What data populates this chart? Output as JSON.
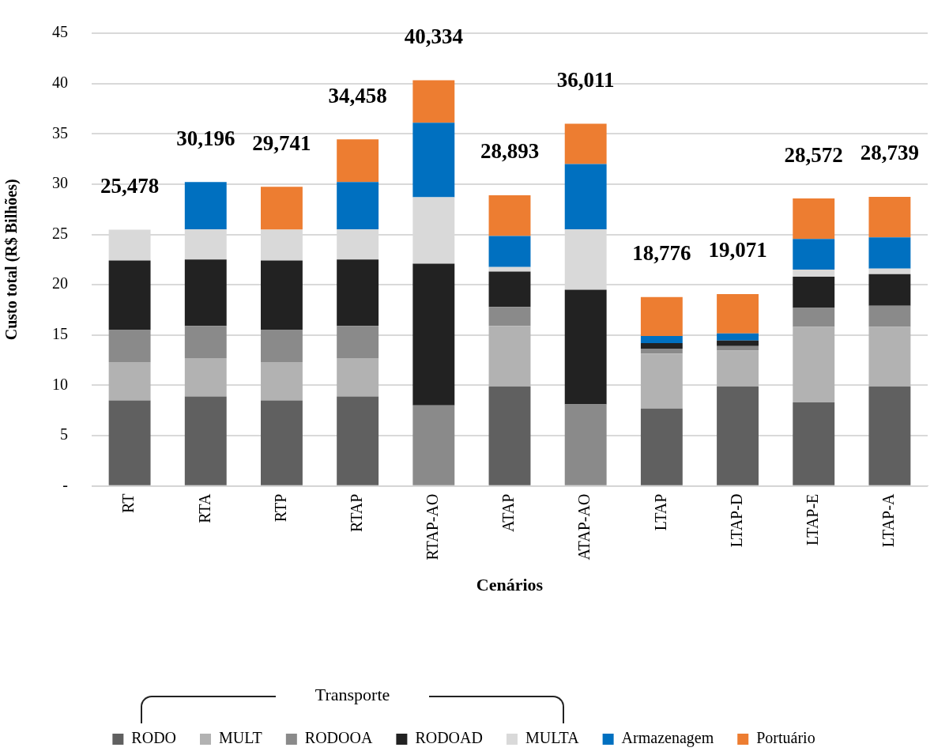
{
  "chart_data": {
    "type": "bar",
    "stacked": true,
    "xlabel": "Cenários",
    "ylabel": "Custo total (R$ Bilhões)",
    "categories": [
      "RT",
      "RTA",
      "RTP",
      "RTAP",
      "RTAP-AO",
      "ATAP",
      "ATAP-AO",
      "LTAP",
      "LTAP-D",
      "LTAP-E",
      "LTAP-A"
    ],
    "series": [
      {
        "name": "RODO",
        "color": "#606060",
        "values": [
          8.5,
          8.9,
          8.5,
          8.9,
          0,
          9.9,
          0,
          7.7,
          9.9,
          8.3,
          9.9
        ]
      },
      {
        "name": "MULT",
        "color": "#b2b2b2",
        "values": [
          3.8,
          3.8,
          3.8,
          3.8,
          0,
          6.0,
          0,
          5.45,
          3.55,
          7.5,
          5.9
        ]
      },
      {
        "name": "RODOOA",
        "color": "#8a8a8a",
        "values": [
          3.2,
          3.2,
          3.2,
          3.2,
          8.0,
          1.9,
          8.1,
          0.5,
          0.45,
          1.9,
          2.1
        ]
      },
      {
        "name": "RODOAD",
        "color": "#222222",
        "values": [
          6.9,
          6.6,
          6.9,
          6.6,
          14.1,
          3.5,
          11.4,
          0.55,
          0.55,
          3.1,
          3.15
        ]
      },
      {
        "name": "MULTA",
        "color": "#d9d9d9",
        "values": [
          3.08,
          3.0,
          3.08,
          3.0,
          6.6,
          0.45,
          6.0,
          0,
          0,
          0.7,
          0.55
        ]
      },
      {
        "name": "Armazenagem",
        "color": "#0070c0",
        "values": [
          0,
          4.7,
          0,
          4.7,
          7.4,
          3.1,
          6.5,
          0.7,
          0.7,
          3.05,
          3.1
        ]
      },
      {
        "name": "Portuário",
        "color": "#ed7d31",
        "values": [
          0,
          0,
          4.26,
          4.26,
          4.23,
          4.04,
          4.01,
          3.88,
          3.92,
          4.02,
          4.04
        ]
      }
    ],
    "totals": [
      "25,478",
      "30,196",
      "29,741",
      "34,458",
      "40,334",
      "28,893",
      "36,011",
      "18,776",
      "19,071",
      "28,572",
      "28,739"
    ],
    "ylim": [
      0,
      45
    ],
    "yticks": [
      {
        "value": 0,
        "label": "-"
      },
      5,
      10,
      15,
      20,
      25,
      30,
      35,
      40,
      45
    ],
    "grid": "y",
    "legend": "bottom",
    "annotations": [
      "Transporte"
    ]
  }
}
